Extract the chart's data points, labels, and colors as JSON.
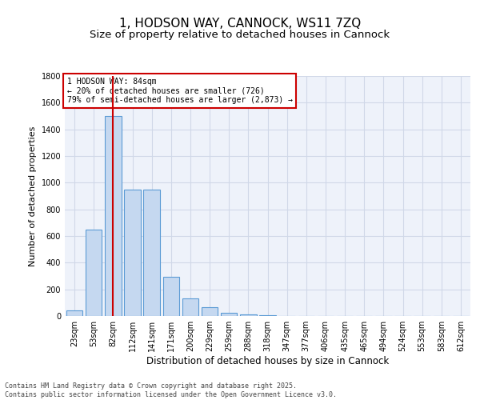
{
  "title": "1, HODSON WAY, CANNOCK, WS11 7ZQ",
  "subtitle": "Size of property relative to detached houses in Cannock",
  "xlabel": "Distribution of detached houses by size in Cannock",
  "ylabel": "Number of detached properties",
  "categories": [
    "23sqm",
    "53sqm",
    "82sqm",
    "112sqm",
    "141sqm",
    "171sqm",
    "200sqm",
    "229sqm",
    "259sqm",
    "288sqm",
    "318sqm",
    "347sqm",
    "377sqm",
    "406sqm",
    "435sqm",
    "465sqm",
    "494sqm",
    "524sqm",
    "553sqm",
    "583sqm",
    "612sqm"
  ],
  "values": [
    40,
    650,
    1500,
    950,
    950,
    295,
    130,
    65,
    22,
    10,
    5,
    2,
    2,
    2,
    0,
    0,
    0,
    0,
    0,
    0,
    0
  ],
  "bar_color": "#c5d8f0",
  "bar_edge_color": "#5b9bd5",
  "grid_color": "#d0d8e8",
  "bg_color": "#eef2fa",
  "annotation_box_color": "#cc0000",
  "vline_color": "#cc0000",
  "vline_x_index": 2,
  "annotation_title": "1 HODSON WAY: 84sqm",
  "annotation_line1": "← 20% of detached houses are smaller (726)",
  "annotation_line2": "79% of semi-detached houses are larger (2,873) →",
  "annotation_fontsize": 7,
  "title_fontsize": 11,
  "subtitle_fontsize": 9.5,
  "xlabel_fontsize": 8.5,
  "ylabel_fontsize": 8,
  "tick_fontsize": 7,
  "ylim": [
    0,
    1800
  ],
  "footer_line1": "Contains HM Land Registry data © Crown copyright and database right 2025.",
  "footer_line2": "Contains public sector information licensed under the Open Government Licence v3.0."
}
